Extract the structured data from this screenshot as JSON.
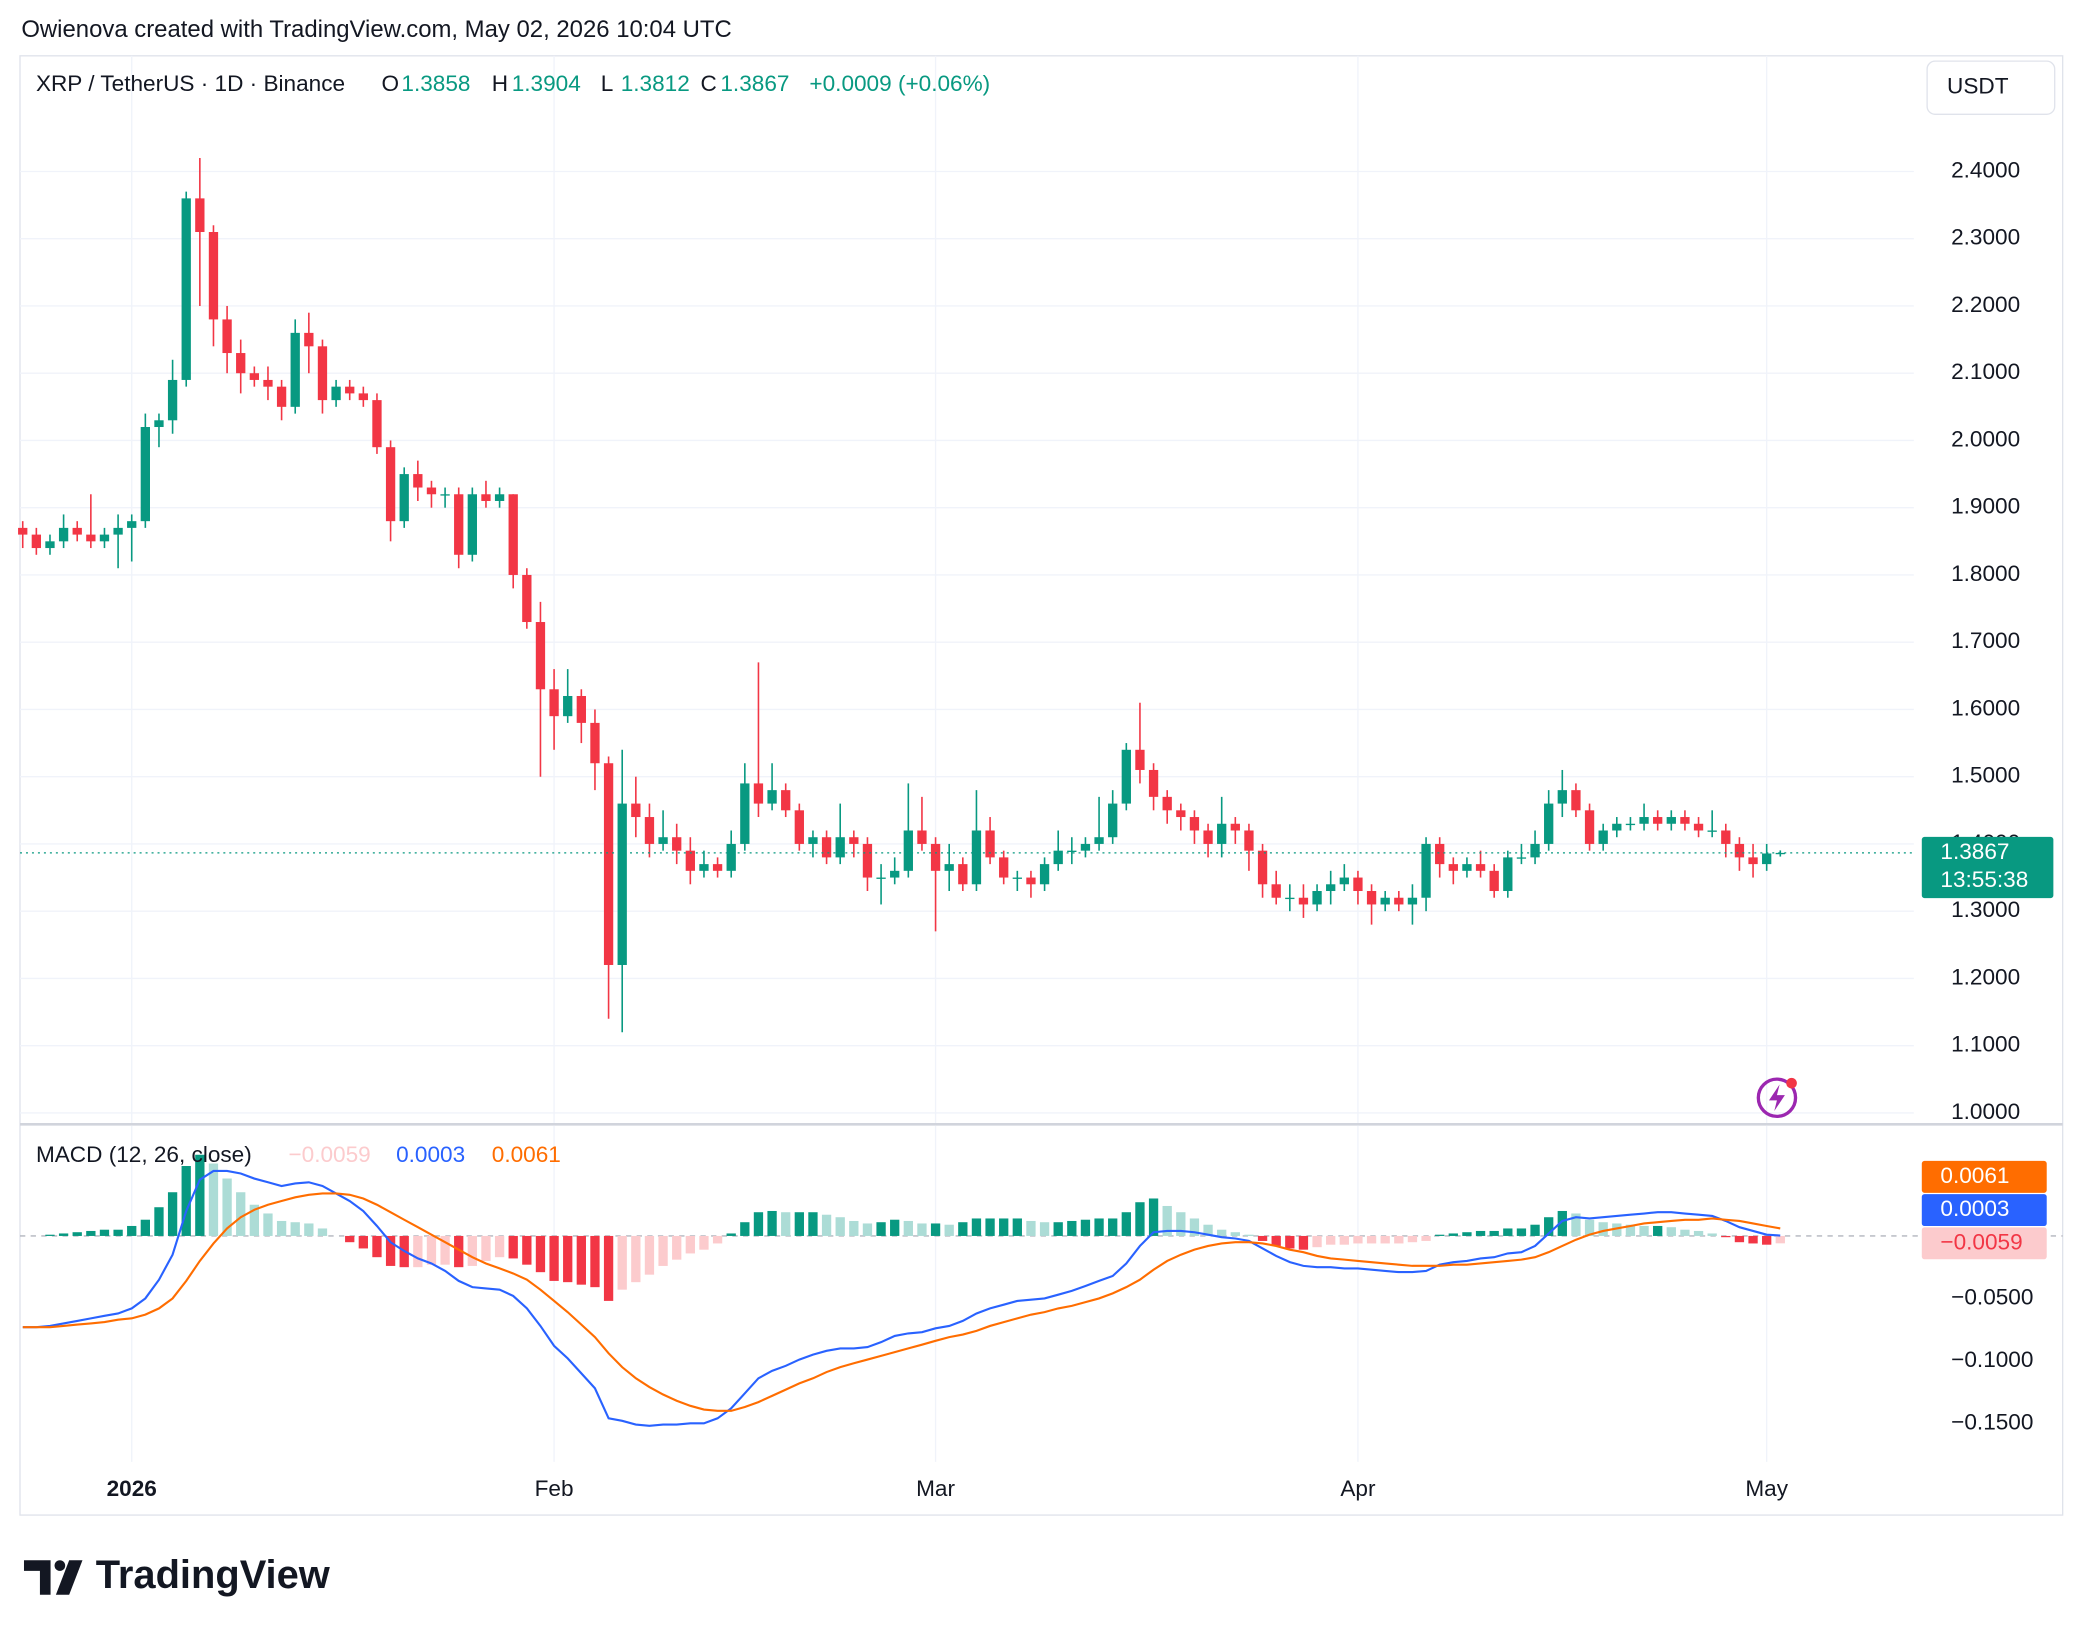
{
  "watermark": "Owienova created with TradingView.com, May 02, 2026 10:04 UTC",
  "logo": "TradingView",
  "chart_data": [
    {
      "type": "candlestick",
      "title": "XRP / TetherUS · 1D · Binance",
      "ohlc_header": [
        {
          "prefix": "O",
          "label": "1.3858"
        },
        {
          "prefix": "H",
          "label": "1.3904"
        },
        {
          "prefix": "L",
          "label": "1.3812"
        },
        {
          "prefix": "C",
          "label": "1.3867"
        }
      ],
      "change_label": "+0.0009 (+0.06%)",
      "currency": "USDT",
      "last_price_label": "1.3867",
      "countdown": "13:55:38",
      "up_color": "#089981",
      "down_color": "#f23645",
      "grid": true,
      "open": [
        1.87,
        1.86,
        1.84,
        1.85,
        1.87,
        1.86,
        1.85,
        1.86,
        1.87,
        1.88,
        2.02,
        2.03,
        2.09,
        2.36,
        2.31,
        2.18,
        2.13,
        2.1,
        2.09,
        2.08,
        2.05,
        2.16,
        2.14,
        2.06,
        2.08,
        2.07,
        2.06,
        1.99,
        1.88,
        1.95,
        1.93,
        1.92,
        1.92,
        1.83,
        1.92,
        1.91,
        1.92,
        1.8,
        1.73,
        1.63,
        1.59,
        1.62,
        1.58,
        1.52,
        1.22,
        1.46,
        1.44,
        1.4,
        1.41,
        1.39,
        1.36,
        1.37,
        1.36,
        1.4,
        1.49,
        1.46,
        1.48,
        1.45,
        1.4,
        1.41,
        1.38,
        1.41,
        1.4,
        1.35,
        1.35,
        1.36,
        1.42,
        1.4,
        1.36,
        1.37,
        1.34,
        1.42,
        1.38,
        1.35,
        1.35,
        1.34,
        1.37,
        1.39,
        1.39,
        1.4,
        1.41,
        1.46,
        1.54,
        1.51,
        1.47,
        1.45,
        1.44,
        1.42,
        1.4,
        1.43,
        1.42,
        1.39,
        1.34,
        1.32,
        1.32,
        1.31,
        1.33,
        1.34,
        1.35,
        1.33,
        1.31,
        1.32,
        1.31,
        1.32,
        1.4,
        1.37,
        1.36,
        1.37,
        1.36,
        1.33,
        1.38,
        1.38,
        1.4,
        1.46,
        1.48,
        1.45,
        1.4,
        1.42,
        1.43,
        1.43,
        1.44,
        1.43,
        1.44,
        1.43,
        1.42,
        1.42,
        1.4,
        1.38,
        1.37,
        1.3858
      ],
      "high": [
        1.88,
        1.87,
        1.86,
        1.89,
        1.88,
        1.92,
        1.87,
        1.89,
        1.89,
        2.04,
        2.04,
        2.12,
        2.37,
        2.42,
        2.32,
        2.2,
        2.15,
        2.11,
        2.11,
        2.09,
        2.18,
        2.19,
        2.15,
        2.09,
        2.09,
        2.08,
        2.07,
        2.0,
        1.96,
        1.97,
        1.94,
        1.93,
        1.93,
        1.93,
        1.94,
        1.93,
        1.92,
        1.81,
        1.76,
        1.66,
        1.66,
        1.63,
        1.6,
        1.53,
        1.54,
        1.5,
        1.46,
        1.45,
        1.43,
        1.41,
        1.39,
        1.38,
        1.42,
        1.52,
        1.67,
        1.52,
        1.49,
        1.46,
        1.42,
        1.42,
        1.46,
        1.42,
        1.41,
        1.37,
        1.38,
        1.49,
        1.47,
        1.41,
        1.4,
        1.38,
        1.48,
        1.44,
        1.39,
        1.36,
        1.36,
        1.38,
        1.42,
        1.41,
        1.41,
        1.47,
        1.48,
        1.55,
        1.61,
        1.52,
        1.48,
        1.46,
        1.45,
        1.43,
        1.47,
        1.44,
        1.43,
        1.4,
        1.36,
        1.34,
        1.34,
        1.34,
        1.36,
        1.37,
        1.36,
        1.34,
        1.33,
        1.33,
        1.34,
        1.41,
        1.41,
        1.38,
        1.38,
        1.39,
        1.37,
        1.39,
        1.4,
        1.42,
        1.48,
        1.51,
        1.49,
        1.46,
        1.43,
        1.44,
        1.44,
        1.46,
        1.45,
        1.45,
        1.45,
        1.44,
        1.45,
        1.43,
        1.41,
        1.4,
        1.4,
        1.3904
      ],
      "low": [
        1.84,
        1.83,
        1.83,
        1.84,
        1.85,
        1.84,
        1.84,
        1.81,
        1.82,
        1.87,
        1.99,
        2.01,
        2.08,
        2.2,
        2.14,
        2.1,
        2.07,
        2.08,
        2.06,
        2.03,
        2.04,
        2.1,
        2.04,
        2.05,
        2.06,
        2.05,
        1.98,
        1.85,
        1.87,
        1.91,
        1.9,
        1.9,
        1.81,
        1.82,
        1.9,
        1.9,
        1.78,
        1.72,
        1.5,
        1.54,
        1.58,
        1.55,
        1.48,
        1.14,
        1.12,
        1.41,
        1.38,
        1.39,
        1.37,
        1.34,
        1.35,
        1.35,
        1.35,
        1.39,
        1.44,
        1.45,
        1.44,
        1.39,
        1.38,
        1.37,
        1.37,
        1.38,
        1.33,
        1.31,
        1.34,
        1.35,
        1.39,
        1.27,
        1.33,
        1.33,
        1.33,
        1.37,
        1.34,
        1.33,
        1.32,
        1.33,
        1.36,
        1.37,
        1.38,
        1.39,
        1.4,
        1.45,
        1.49,
        1.45,
        1.43,
        1.42,
        1.4,
        1.38,
        1.38,
        1.4,
        1.36,
        1.32,
        1.31,
        1.3,
        1.29,
        1.3,
        1.31,
        1.33,
        1.31,
        1.28,
        1.3,
        1.3,
        1.28,
        1.3,
        1.35,
        1.34,
        1.35,
        1.35,
        1.32,
        1.32,
        1.37,
        1.37,
        1.39,
        1.44,
        1.44,
        1.39,
        1.39,
        1.41,
        1.42,
        1.42,
        1.42,
        1.42,
        1.42,
        1.41,
        1.41,
        1.38,
        1.36,
        1.35,
        1.36,
        1.3812
      ],
      "close": [
        1.86,
        1.84,
        1.85,
        1.87,
        1.86,
        1.85,
        1.86,
        1.87,
        1.88,
        2.02,
        2.03,
        2.09,
        2.36,
        2.31,
        2.18,
        2.13,
        2.1,
        2.09,
        2.08,
        2.05,
        2.16,
        2.14,
        2.06,
        2.08,
        2.07,
        2.06,
        1.99,
        1.88,
        1.95,
        1.93,
        1.92,
        1.92,
        1.83,
        1.92,
        1.91,
        1.92,
        1.8,
        1.73,
        1.63,
        1.59,
        1.62,
        1.58,
        1.52,
        1.22,
        1.46,
        1.44,
        1.4,
        1.41,
        1.39,
        1.36,
        1.37,
        1.36,
        1.4,
        1.49,
        1.46,
        1.48,
        1.45,
        1.4,
        1.41,
        1.38,
        1.41,
        1.4,
        1.35,
        1.35,
        1.36,
        1.42,
        1.4,
        1.36,
        1.37,
        1.34,
        1.42,
        1.38,
        1.35,
        1.35,
        1.34,
        1.37,
        1.39,
        1.39,
        1.4,
        1.41,
        1.46,
        1.54,
        1.51,
        1.47,
        1.45,
        1.44,
        1.42,
        1.4,
        1.43,
        1.42,
        1.39,
        1.34,
        1.32,
        1.32,
        1.31,
        1.33,
        1.34,
        1.35,
        1.33,
        1.31,
        1.32,
        1.31,
        1.32,
        1.4,
        1.37,
        1.36,
        1.37,
        1.36,
        1.33,
        1.38,
        1.38,
        1.4,
        1.46,
        1.48,
        1.45,
        1.4,
        1.42,
        1.43,
        1.43,
        1.44,
        1.43,
        1.44,
        1.43,
        1.42,
        1.42,
        1.4,
        1.38,
        1.37,
        1.3858,
        1.3867
      ],
      "xlim": [
        -0.2,
        138.8
      ],
      "ylim": [
        0.985,
        2.572
      ],
      "xticks": [
        {
          "value": 8,
          "label": "2026"
        },
        {
          "value": 39,
          "label": "Feb"
        },
        {
          "value": 67,
          "label": "Mar"
        },
        {
          "value": 98,
          "label": "Apr"
        },
        {
          "value": 128,
          "label": "May"
        }
      ],
      "yticks": [
        {
          "value": 1.0,
          "label": "1.0000"
        },
        {
          "value": 1.1,
          "label": "1.1000"
        },
        {
          "value": 1.2,
          "label": "1.2000"
        },
        {
          "value": 1.3,
          "label": "1.3000"
        },
        {
          "value": 1.4,
          "label": "1.4000"
        },
        {
          "value": 1.5,
          "label": "1.5000"
        },
        {
          "value": 1.6,
          "label": "1.6000"
        },
        {
          "value": 1.7,
          "label": "1.7000"
        },
        {
          "value": 1.8,
          "label": "1.8000"
        },
        {
          "value": 1.9,
          "label": "1.9000"
        },
        {
          "value": 2.0,
          "label": "2.0000"
        },
        {
          "value": 2.1,
          "label": "2.1000"
        },
        {
          "value": 2.2,
          "label": "2.2000"
        },
        {
          "value": 2.3,
          "label": "2.3000"
        },
        {
          "value": 2.4,
          "label": "2.4000"
        }
      ]
    },
    {
      "type": "macd",
      "title": "MACD (12, 26, close)",
      "ylim": [
        -0.1809,
        0.0883
      ],
      "yticks": [
        {
          "value": -0.05,
          "label": "−0.0500"
        },
        {
          "value": -0.1,
          "label": "−0.1000"
        },
        {
          "value": -0.15,
          "label": "−0.1500"
        }
      ],
      "series": [
        {
          "kind": "histogram",
          "colors": [
            "#089981",
            "#acdcd6",
            "#f23645",
            "#fccbcd"
          ],
          "value_label": "−0.0059",
          "values": [
            0,
            0,
            0.001,
            0.002,
            0.003,
            0.004,
            0.005,
            0.005,
            0.008,
            0.013,
            0.023,
            0.035,
            0.056,
            0.065,
            0.058,
            0.046,
            0.035,
            0.025,
            0.018,
            0.012,
            0.011,
            0.01,
            0.006,
            0.0,
            -0.005,
            -0.01,
            -0.017,
            -0.024,
            -0.025,
            -0.025,
            -0.023,
            -0.023,
            -0.025,
            -0.024,
            -0.02,
            -0.017,
            -0.018,
            -0.023,
            -0.029,
            -0.036,
            -0.037,
            -0.039,
            -0.041,
            -0.052,
            -0.043,
            -0.037,
            -0.031,
            -0.024,
            -0.019,
            -0.014,
            -0.011,
            -0.006,
            0.002,
            0.011,
            0.019,
            0.02,
            0.019,
            0.019,
            0.019,
            0.017,
            0.015,
            0.012,
            0.01,
            0.011,
            0.013,
            0.012,
            0.01,
            0.01,
            0.009,
            0.011,
            0.014,
            0.014,
            0.014,
            0.014,
            0.012,
            0.011,
            0.011,
            0.012,
            0.013,
            0.014,
            0.014,
            0.019,
            0.027,
            0.03,
            0.024,
            0.019,
            0.014,
            0.009,
            0.005,
            0.003,
            0.001,
            -0.004,
            -0.008,
            -0.01,
            -0.011,
            -0.009,
            -0.007,
            -0.007,
            -0.006,
            -0.006,
            -0.006,
            -0.006,
            -0.005,
            -0.004,
            0.001,
            0.002,
            0.003,
            0.004,
            0.004,
            0.006,
            0.006,
            0.009,
            0.015,
            0.02,
            0.018,
            0.013,
            0.011,
            0.01,
            0.009,
            0.008,
            0.008,
            0.007,
            0.005,
            0.004,
            0.002,
            -0.001,
            -0.005,
            -0.006,
            -0.007,
            -0.0059
          ]
        },
        {
          "kind": "line",
          "color": "#2962ff",
          "value_label": "0.0003",
          "values": [
            -0.073,
            -0.073,
            -0.072,
            -0.07,
            -0.068,
            -0.066,
            -0.064,
            -0.062,
            -0.058,
            -0.05,
            -0.035,
            -0.015,
            0.02,
            0.045,
            0.052,
            0.052,
            0.05,
            0.046,
            0.043,
            0.04,
            0.042,
            0.043,
            0.04,
            0.034,
            0.028,
            0.02,
            0.008,
            -0.005,
            -0.012,
            -0.018,
            -0.022,
            -0.028,
            -0.036,
            -0.041,
            -0.042,
            -0.043,
            -0.048,
            -0.058,
            -0.072,
            -0.088,
            -0.098,
            -0.11,
            -0.122,
            -0.146,
            -0.148,
            -0.151,
            -0.152,
            -0.151,
            -0.151,
            -0.15,
            -0.15,
            -0.146,
            -0.138,
            -0.126,
            -0.114,
            -0.108,
            -0.104,
            -0.099,
            -0.095,
            -0.092,
            -0.09,
            -0.09,
            -0.089,
            -0.085,
            -0.08,
            -0.078,
            -0.077,
            -0.074,
            -0.072,
            -0.068,
            -0.062,
            -0.058,
            -0.055,
            -0.052,
            -0.051,
            -0.05,
            -0.047,
            -0.044,
            -0.04,
            -0.036,
            -0.032,
            -0.022,
            -0.008,
            0.003,
            0.004,
            0.004,
            0.003,
            0.001,
            -0.001,
            -0.002,
            -0.004,
            -0.01,
            -0.016,
            -0.021,
            -0.024,
            -0.025,
            -0.025,
            -0.026,
            -0.026,
            -0.027,
            -0.028,
            -0.029,
            -0.029,
            -0.028,
            -0.023,
            -0.021,
            -0.02,
            -0.018,
            -0.017,
            -0.014,
            -0.013,
            -0.008,
            0.002,
            0.012,
            0.015,
            0.014,
            0.015,
            0.016,
            0.017,
            0.018,
            0.019,
            0.019,
            0.018,
            0.017,
            0.016,
            0.012,
            0.007,
            0.004,
            0.001,
            0.0003
          ]
        },
        {
          "kind": "line",
          "color": "#ff6d00",
          "value_label": "0.0061",
          "values": [
            -0.073,
            -0.073,
            -0.073,
            -0.072,
            -0.071,
            -0.07,
            -0.069,
            -0.067,
            -0.066,
            -0.063,
            -0.058,
            -0.05,
            -0.036,
            -0.02,
            -0.006,
            0.006,
            0.015,
            0.021,
            0.025,
            0.028,
            0.031,
            0.033,
            0.034,
            0.034,
            0.033,
            0.03,
            0.025,
            0.019,
            0.013,
            0.007,
            0.001,
            -0.005,
            -0.011,
            -0.017,
            -0.022,
            -0.026,
            -0.03,
            -0.035,
            -0.043,
            -0.052,
            -0.061,
            -0.071,
            -0.081,
            -0.094,
            -0.105,
            -0.114,
            -0.121,
            -0.127,
            -0.132,
            -0.136,
            -0.139,
            -0.14,
            -0.14,
            -0.137,
            -0.133,
            -0.128,
            -0.123,
            -0.118,
            -0.114,
            -0.109,
            -0.105,
            -0.102,
            -0.099,
            -0.096,
            -0.093,
            -0.09,
            -0.087,
            -0.084,
            -0.081,
            -0.079,
            -0.076,
            -0.072,
            -0.069,
            -0.066,
            -0.063,
            -0.061,
            -0.058,
            -0.056,
            -0.053,
            -0.05,
            -0.046,
            -0.041,
            -0.035,
            -0.027,
            -0.02,
            -0.015,
            -0.011,
            -0.008,
            -0.006,
            -0.005,
            -0.005,
            -0.006,
            -0.008,
            -0.011,
            -0.013,
            -0.016,
            -0.018,
            -0.019,
            -0.02,
            -0.021,
            -0.022,
            -0.023,
            -0.024,
            -0.024,
            -0.024,
            -0.023,
            -0.023,
            -0.022,
            -0.021,
            -0.02,
            -0.019,
            -0.017,
            -0.013,
            -0.008,
            -0.003,
            0.001,
            0.004,
            0.006,
            0.008,
            0.01,
            0.011,
            0.012,
            0.013,
            0.013,
            0.014,
            0.013,
            0.012,
            0.01,
            0.008,
            0.0061
          ]
        }
      ]
    }
  ]
}
